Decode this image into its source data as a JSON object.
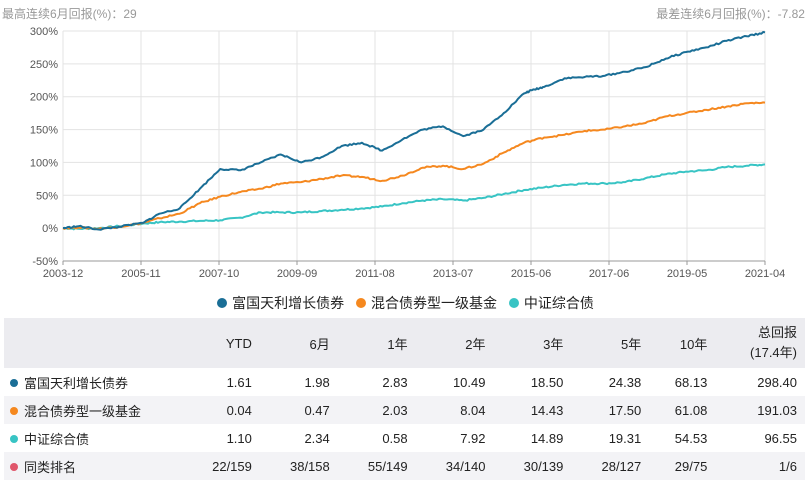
{
  "top_notes": {
    "left": "最高连续6月回报(%)：29",
    "right": "最差连续6月回报(%)：-7.82"
  },
  "chart_data": {
    "type": "line",
    "x_ticks": [
      "2003-12",
      "2005-11",
      "2007-10",
      "2009-09",
      "2011-08",
      "2013-07",
      "2015-06",
      "2017-06",
      "2019-05",
      "2021-04"
    ],
    "y_ticks": [
      "300%",
      "250%",
      "200%",
      "150%",
      "100%",
      "50%",
      "0%",
      "-50%"
    ],
    "ylim": [
      -50,
      300
    ],
    "x_range": [
      2003.92,
      2021.25
    ],
    "grid": true,
    "legend_position": "bottom",
    "series": [
      {
        "name": "富国天利增长债券",
        "color": "#1a6e96",
        "points": [
          [
            2003.92,
            0
          ],
          [
            2004.3,
            3
          ],
          [
            2004.8,
            -2
          ],
          [
            2005.3,
            2
          ],
          [
            2005.9,
            8
          ],
          [
            2006.3,
            22
          ],
          [
            2006.8,
            30
          ],
          [
            2007.3,
            60
          ],
          [
            2007.8,
            90
          ],
          [
            2008.3,
            88
          ],
          [
            2008.8,
            100
          ],
          [
            2009.3,
            112
          ],
          [
            2009.8,
            100
          ],
          [
            2010.3,
            108
          ],
          [
            2010.8,
            125
          ],
          [
            2011.3,
            130
          ],
          [
            2011.8,
            118
          ],
          [
            2012.3,
            135
          ],
          [
            2012.8,
            150
          ],
          [
            2013.3,
            155
          ],
          [
            2013.8,
            140
          ],
          [
            2014.3,
            150
          ],
          [
            2014.8,
            175
          ],
          [
            2015.3,
            205
          ],
          [
            2015.5,
            210
          ],
          [
            2015.8,
            215
          ],
          [
            2016.3,
            228
          ],
          [
            2016.8,
            230
          ],
          [
            2017.3,
            232
          ],
          [
            2017.8,
            238
          ],
          [
            2018.3,
            245
          ],
          [
            2018.8,
            258
          ],
          [
            2019.3,
            268
          ],
          [
            2019.8,
            275
          ],
          [
            2020.3,
            285
          ],
          [
            2020.8,
            292
          ],
          [
            2021.25,
            298
          ]
        ]
      },
      {
        "name": "混合债券型一级基金",
        "color": "#f5881f",
        "points": [
          [
            2003.92,
            0
          ],
          [
            2004.3,
            1
          ],
          [
            2004.8,
            -1
          ],
          [
            2005.3,
            2
          ],
          [
            2005.9,
            8
          ],
          [
            2006.3,
            15
          ],
          [
            2006.8,
            22
          ],
          [
            2007.3,
            38
          ],
          [
            2007.8,
            48
          ],
          [
            2008.3,
            55
          ],
          [
            2008.8,
            60
          ],
          [
            2009.3,
            68
          ],
          [
            2009.8,
            70
          ],
          [
            2010.3,
            75
          ],
          [
            2010.8,
            80
          ],
          [
            2011.3,
            78
          ],
          [
            2011.8,
            72
          ],
          [
            2012.3,
            80
          ],
          [
            2012.8,
            92
          ],
          [
            2013.3,
            95
          ],
          [
            2013.8,
            90
          ],
          [
            2014.3,
            98
          ],
          [
            2014.8,
            115
          ],
          [
            2015.3,
            130
          ],
          [
            2015.8,
            138
          ],
          [
            2016.3,
            142
          ],
          [
            2016.8,
            148
          ],
          [
            2017.3,
            150
          ],
          [
            2017.8,
            155
          ],
          [
            2018.3,
            160
          ],
          [
            2018.8,
            170
          ],
          [
            2019.3,
            175
          ],
          [
            2019.8,
            180
          ],
          [
            2020.3,
            185
          ],
          [
            2020.8,
            190
          ],
          [
            2021.25,
            191
          ]
        ]
      },
      {
        "name": "中证综合债",
        "color": "#38c4c4",
        "points": [
          [
            2003.92,
            0
          ],
          [
            2004.3,
            -1
          ],
          [
            2004.8,
            0
          ],
          [
            2005.3,
            3
          ],
          [
            2005.9,
            7
          ],
          [
            2006.3,
            9
          ],
          [
            2006.8,
            10
          ],
          [
            2007.3,
            11
          ],
          [
            2007.8,
            12
          ],
          [
            2008.3,
            16
          ],
          [
            2008.8,
            24
          ],
          [
            2009.3,
            24
          ],
          [
            2009.8,
            24
          ],
          [
            2010.3,
            26
          ],
          [
            2010.8,
            28
          ],
          [
            2011.3,
            30
          ],
          [
            2011.8,
            33
          ],
          [
            2012.3,
            38
          ],
          [
            2012.8,
            42
          ],
          [
            2013.3,
            44
          ],
          [
            2013.8,
            42
          ],
          [
            2014.3,
            46
          ],
          [
            2014.8,
            52
          ],
          [
            2015.3,
            58
          ],
          [
            2015.8,
            62
          ],
          [
            2016.3,
            66
          ],
          [
            2016.8,
            68
          ],
          [
            2017.3,
            68
          ],
          [
            2017.8,
            70
          ],
          [
            2018.3,
            76
          ],
          [
            2018.8,
            82
          ],
          [
            2019.3,
            86
          ],
          [
            2019.8,
            88
          ],
          [
            2020.3,
            93
          ],
          [
            2020.8,
            95
          ],
          [
            2021.25,
            97
          ]
        ]
      }
    ]
  },
  "table": {
    "headers": [
      "",
      "YTD",
      "6月",
      "1年",
      "2年",
      "3年",
      "5年",
      "10年"
    ],
    "total_header_line1": "总回报",
    "total_header_line2": "(17.4年)",
    "rows": [
      {
        "name": "富国天利增长债券",
        "dot": "#1a6e96",
        "values": [
          "1.61",
          "1.98",
          "2.83",
          "10.49",
          "18.50",
          "24.38",
          "68.13",
          "298.40"
        ]
      },
      {
        "name": "混合债券型一级基金",
        "dot": "#f5881f",
        "values": [
          "0.04",
          "0.47",
          "2.03",
          "8.04",
          "14.43",
          "17.50",
          "61.08",
          "191.03"
        ]
      },
      {
        "name": "中证综合债",
        "dot": "#38c4c4",
        "values": [
          "1.10",
          "2.34",
          "0.58",
          "7.92",
          "14.89",
          "19.31",
          "54.53",
          "96.55"
        ]
      },
      {
        "name": "同类排名",
        "dot": "#e0566b",
        "values": [
          "22/159",
          "38/158",
          "55/149",
          "34/140",
          "30/139",
          "28/127",
          "29/75",
          "1/6"
        ]
      }
    ]
  }
}
